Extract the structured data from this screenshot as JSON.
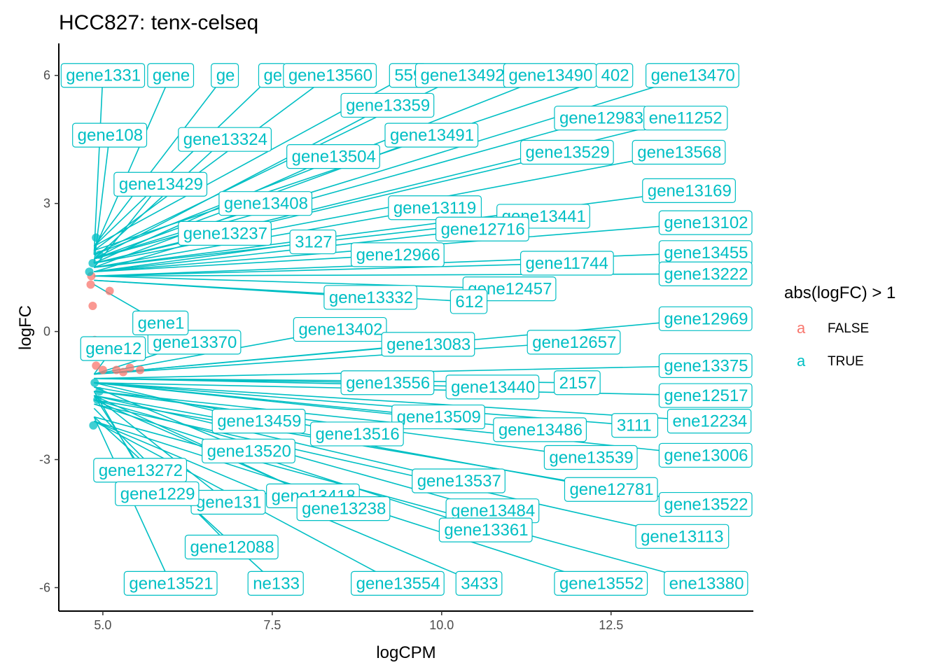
{
  "chart_data": {
    "type": "scatter",
    "title": "HCC827: tenx-celseq",
    "xlabel": "logCPM",
    "ylabel": "logFC",
    "xlim": [
      4.35,
      14.6
    ],
    "ylim": [
      -6.55,
      6.75
    ],
    "x_ticks": [
      5.0,
      7.5,
      10.0,
      12.5
    ],
    "x_tick_labels": [
      "5.0",
      "7.5",
      "10.0",
      "12.5"
    ],
    "y_ticks": [
      -6,
      -3,
      0,
      3,
      6
    ],
    "y_tick_labels": [
      "-6",
      "-3",
      "0",
      "3",
      "6"
    ],
    "grid": false,
    "legend": {
      "title": "abs(logFC) > 1",
      "position": "right",
      "key_glyph": "a",
      "entries": [
        {
          "label": "FALSE",
          "color": "#F8766D"
        },
        {
          "label": "TRUE",
          "color": "#00BFC4"
        }
      ]
    },
    "series": [
      {
        "name": "FALSE",
        "color": "#F8766D",
        "points": [
          {
            "x": 4.82,
            "y": 1.1
          },
          {
            "x": 4.85,
            "y": 0.6
          },
          {
            "x": 4.88,
            "y": -0.2
          },
          {
            "x": 4.9,
            "y": -0.8
          },
          {
            "x": 5.0,
            "y": -0.9
          },
          {
            "x": 5.2,
            "y": -0.9
          },
          {
            "x": 5.4,
            "y": -0.85
          },
          {
            "x": 5.55,
            "y": -0.9
          },
          {
            "x": 4.83,
            "y": 1.3
          },
          {
            "x": 5.1,
            "y": 0.95
          },
          {
            "x": 4.95,
            "y": -0.5
          },
          {
            "x": 5.3,
            "y": -0.95
          }
        ]
      },
      {
        "name": "TRUE",
        "color": "#00BFC4",
        "points": [
          {
            "x": 4.85,
            "y": 1.6
          },
          {
            "x": 4.9,
            "y": 2.2
          },
          {
            "x": 4.95,
            "y": 1.8
          },
          {
            "x": 4.8,
            "y": 1.4
          },
          {
            "x": 4.88,
            "y": -1.2
          },
          {
            "x": 4.92,
            "y": -1.6
          },
          {
            "x": 4.86,
            "y": -2.2
          },
          {
            "x": 4.95,
            "y": -1.4
          }
        ]
      }
    ],
    "label_anchor_x": 4.87,
    "labels": [
      {
        "text": "gene1331",
        "x": 5.0,
        "y": 6.0,
        "ay": 1.8
      },
      {
        "text": "gene",
        "x": 6.0,
        "y": 6.0,
        "ay": 1.9
      },
      {
        "text": "ge",
        "x": 6.8,
        "y": 6.0,
        "ay": 2.0
      },
      {
        "text": "ge",
        "x": 7.5,
        "y": 6.0,
        "ay": 2.0
      },
      {
        "text": "gene13560",
        "x": 8.35,
        "y": 6.0,
        "ay": 1.9
      },
      {
        "text": "559",
        "x": 9.5,
        "y": 6.0,
        "ay": 2.0
      },
      {
        "text": "gene13492",
        "x": 10.3,
        "y": 6.0,
        "ay": 1.8
      },
      {
        "text": "gene13490",
        "x": 11.6,
        "y": 6.0,
        "ay": 1.8
      },
      {
        "text": "402",
        "x": 12.55,
        "y": 6.0,
        "ay": 1.9
      },
      {
        "text": "gene13470",
        "x": 13.7,
        "y": 6.0,
        "ay": 1.7
      },
      {
        "text": "gene13359",
        "x": 9.2,
        "y": 5.3,
        "ay": 1.7
      },
      {
        "text": "gene12983",
        "x": 12.35,
        "y": 5.0,
        "ay": 1.7
      },
      {
        "text": "ene11252",
        "x": 13.6,
        "y": 5.0,
        "ay": 1.6
      },
      {
        "text": "gene13491",
        "x": 9.85,
        "y": 4.6,
        "ay": 1.7
      },
      {
        "text": "gene108",
        "x": 5.1,
        "y": 4.6,
        "ay": 1.6
      },
      {
        "text": "gene13324",
        "x": 6.8,
        "y": 4.5,
        "ay": 1.7
      },
      {
        "text": "gene13504",
        "x": 8.4,
        "y": 4.1,
        "ay": 1.6
      },
      {
        "text": "gene13529",
        "x": 11.85,
        "y": 4.2,
        "ay": 1.6
      },
      {
        "text": "gene13568",
        "x": 13.5,
        "y": 4.2,
        "ay": 1.6
      },
      {
        "text": "gene13429",
        "x": 5.85,
        "y": 3.45,
        "ay": 1.5
      },
      {
        "text": "gene13408",
        "x": 7.4,
        "y": 3.0,
        "ay": 1.5
      },
      {
        "text": "gene13119",
        "x": 9.9,
        "y": 2.9,
        "ay": 1.5
      },
      {
        "text": "gene13169",
        "x": 13.65,
        "y": 3.3,
        "ay": 1.5
      },
      {
        "text": "gene13441",
        "x": 11.5,
        "y": 2.7,
        "ay": 1.5
      },
      {
        "text": "gene12716",
        "x": 10.6,
        "y": 2.4,
        "ay": 1.4
      },
      {
        "text": "gene13102",
        "x": 13.9,
        "y": 2.55,
        "ay": 1.4
      },
      {
        "text": "gene13237",
        "x": 6.8,
        "y": 2.3,
        "ay": 1.4
      },
      {
        "text": "3127",
        "x": 8.1,
        "y": 2.1,
        "ay": 1.4
      },
      {
        "text": "gene12966",
        "x": 9.35,
        "y": 1.8,
        "ay": 1.4
      },
      {
        "text": "gene11744",
        "x": 11.85,
        "y": 1.6,
        "ay": 1.3
      },
      {
        "text": "gene13455",
        "x": 13.9,
        "y": 1.85,
        "ay": 1.3
      },
      {
        "text": "gene13222",
        "x": 13.9,
        "y": 1.35,
        "ay": 1.3
      },
      {
        "text": "gene12457",
        "x": 11.0,
        "y": 1.0,
        "ay": 1.3
      },
      {
        "text": "gene13332",
        "x": 8.95,
        "y": 0.8,
        "ay": 1.2
      },
      {
        "text": "612",
        "x": 10.4,
        "y": 0.7,
        "ay": 1.2
      },
      {
        "text": "gene12969",
        "x": 13.95,
        "y": 0.3,
        "ay": -1.0
      },
      {
        "text": "gene13402",
        "x": 8.5,
        "y": 0.05,
        "ay": -1.0
      },
      {
        "text": "gene13083",
        "x": 9.8,
        "y": -0.3,
        "ay": -1.0
      },
      {
        "text": "gene12657",
        "x": 11.95,
        "y": -0.25,
        "ay": -1.0
      },
      {
        "text": "gene13370",
        "x": 6.35,
        "y": -0.25,
        "ay": -1.0
      },
      {
        "text": "gene12",
        "x": 5.15,
        "y": -0.4,
        "ay": -1.0
      },
      {
        "text": "gene13375",
        "x": 13.9,
        "y": -0.8,
        "ay": -1.1
      },
      {
        "text": "gene13556",
        "x": 9.2,
        "y": -1.2,
        "ay": -1.1
      },
      {
        "text": "gene13440",
        "x": 10.75,
        "y": -1.3,
        "ay": -1.1
      },
      {
        "text": "2157",
        "x": 12.0,
        "y": -1.2,
        "ay": -1.1
      },
      {
        "text": "gene12517",
        "x": 13.9,
        "y": -1.5,
        "ay": -1.2
      },
      {
        "text": "gene13509",
        "x": 9.95,
        "y": -2.0,
        "ay": -1.2
      },
      {
        "text": "gene13459",
        "x": 7.3,
        "y": -2.1,
        "ay": -1.2
      },
      {
        "text": "gene13516",
        "x": 8.75,
        "y": -2.4,
        "ay": -1.3
      },
      {
        "text": "gene13486",
        "x": 11.45,
        "y": -2.3,
        "ay": -1.2
      },
      {
        "text": "3111",
        "x": 12.85,
        "y": -2.2,
        "ay": -1.2
      },
      {
        "text": "ene12234",
        "x": 13.95,
        "y": -2.1,
        "ay": -1.2
      },
      {
        "text": "gene13520",
        "x": 7.15,
        "y": -2.8,
        "ay": -1.3
      },
      {
        "text": "gene13539",
        "x": 12.2,
        "y": -2.95,
        "ay": -1.4
      },
      {
        "text": "gene13006",
        "x": 13.9,
        "y": -2.9,
        "ay": -1.4
      },
      {
        "text": "gene13272",
        "x": 5.55,
        "y": -3.25,
        "ay": -1.4
      },
      {
        "text": "gene13537",
        "x": 10.25,
        "y": -3.5,
        "ay": -1.5
      },
      {
        "text": "gene12781",
        "x": 12.5,
        "y": -3.7,
        "ay": -1.5
      },
      {
        "text": "gene13418",
        "x": 8.1,
        "y": -3.85,
        "ay": -1.5
      },
      {
        "text": "gene131",
        "x": 6.85,
        "y": -4.0,
        "ay": -1.5
      },
      {
        "text": "gene13522",
        "x": 13.9,
        "y": -4.05,
        "ay": -1.6
      },
      {
        "text": "gene13484",
        "x": 10.75,
        "y": -4.2,
        "ay": -1.6
      },
      {
        "text": "gene13238",
        "x": 8.55,
        "y": -4.15,
        "ay": -1.6
      },
      {
        "text": "gene13361",
        "x": 10.65,
        "y": -4.65,
        "ay": -1.7
      },
      {
        "text": "gene13113",
        "x": 13.55,
        "y": -4.8,
        "ay": -1.7
      },
      {
        "text": "gene1229",
        "x": 5.8,
        "y": -3.8,
        "ay": -1.5
      },
      {
        "text": "gene12088",
        "x": 6.9,
        "y": -5.05,
        "ay": -1.8
      },
      {
        "text": "gene13521",
        "x": 6.0,
        "y": -5.9,
        "ay": -2.0
      },
      {
        "text": "ne133",
        "x": 7.55,
        "y": -5.9,
        "ay": -2.0
      },
      {
        "text": "gene13554",
        "x": 9.35,
        "y": -5.9,
        "ay": -2.1
      },
      {
        "text": "3433",
        "x": 10.55,
        "y": -5.9,
        "ay": -2.1
      },
      {
        "text": "gene13552",
        "x": 12.35,
        "y": -5.9,
        "ay": -2.1
      },
      {
        "text": "ene13380",
        "x": 13.9,
        "y": -5.9,
        "ay": -2.0
      },
      {
        "text": "gene1",
        "x": 5.85,
        "y": 0.2,
        "ay": 1.1
      }
    ]
  }
}
